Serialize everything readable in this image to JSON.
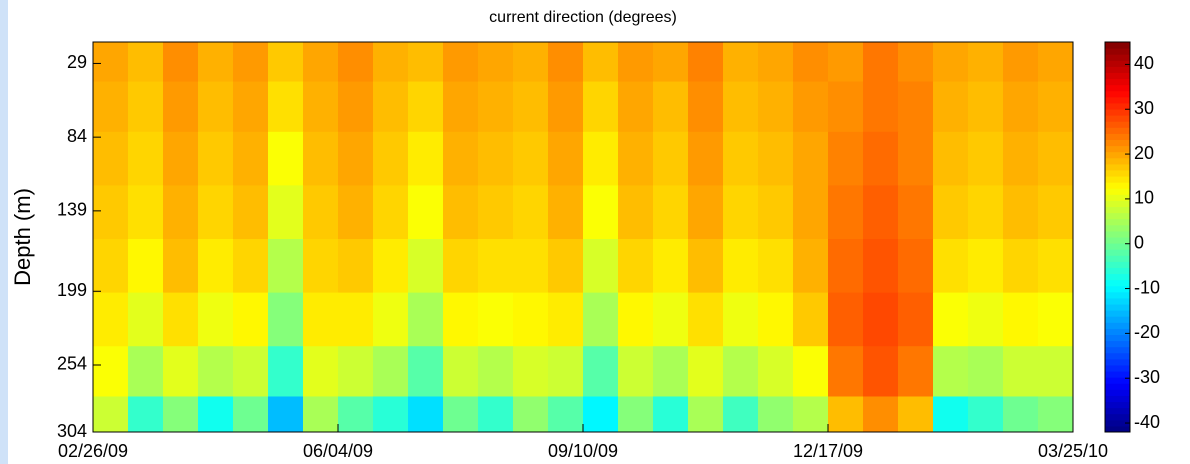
{
  "chart_data": {
    "type": "heatmap",
    "title": "current direction (degrees)",
    "y_label": "Depth (m)",
    "x": [
      "2009-02-26",
      "2009-03-12",
      "2009-03-26",
      "2009-04-09",
      "2009-04-23",
      "2009-05-07",
      "2009-05-21",
      "2009-06-04",
      "2009-06-18",
      "2009-07-02",
      "2009-07-16",
      "2009-07-30",
      "2009-08-13",
      "2009-08-27",
      "2009-09-10",
      "2009-09-24",
      "2009-10-08",
      "2009-10-22",
      "2009-11-05",
      "2009-11-19",
      "2009-12-03",
      "2009-12-17",
      "2009-12-31",
      "2010-01-14",
      "2010-01-28",
      "2010-02-11",
      "2010-02-25",
      "2010-03-11"
    ],
    "y": [
      25,
      60,
      100,
      140,
      180,
      220,
      260,
      295
    ],
    "z": [
      [
        20,
        18,
        22,
        19,
        21,
        17,
        20,
        22,
        19,
        18,
        21,
        20,
        19,
        22,
        18,
        21,
        20,
        23,
        19,
        20,
        22,
        21,
        24,
        22,
        20,
        19,
        21,
        20
      ],
      [
        19,
        17,
        21,
        18,
        20,
        15,
        19,
        21,
        18,
        16,
        20,
        19,
        18,
        21,
        16,
        20,
        18,
        22,
        18,
        19,
        21,
        22,
        24,
        23,
        19,
        18,
        20,
        19
      ],
      [
        18,
        16,
        20,
        17,
        19,
        12,
        18,
        20,
        17,
        14,
        19,
        18,
        17,
        20,
        14,
        19,
        17,
        21,
        17,
        18,
        20,
        23,
        25,
        23,
        18,
        17,
        19,
        18
      ],
      [
        17,
        15,
        19,
        16,
        18,
        10,
        17,
        19,
        16,
        12,
        18,
        17,
        16,
        19,
        12,
        18,
        16,
        20,
        16,
        17,
        20,
        24,
        26,
        24,
        17,
        16,
        18,
        17
      ],
      [
        16,
        13,
        18,
        14,
        16,
        6,
        16,
        17,
        14,
        9,
        16,
        15,
        15,
        17,
        9,
        16,
        14,
        18,
        14,
        15,
        19,
        25,
        27,
        25,
        15,
        14,
        16,
        15
      ],
      [
        14,
        10,
        15,
        11,
        13,
        2,
        14,
        14,
        11,
        5,
        13,
        12,
        13,
        14,
        5,
        13,
        11,
        15,
        11,
        13,
        17,
        26,
        28,
        26,
        12,
        11,
        13,
        12
      ],
      [
        12,
        5,
        10,
        6,
        8,
        -5,
        10,
        8,
        5,
        -2,
        8,
        6,
        9,
        8,
        -2,
        8,
        5,
        10,
        6,
        9,
        12,
        24,
        27,
        24,
        6,
        5,
        8,
        8
      ],
      [
        8,
        -5,
        2,
        -8,
        0,
        -15,
        5,
        -2,
        -6,
        -12,
        0,
        -5,
        3,
        -2,
        -10,
        2,
        -6,
        5,
        -4,
        3,
        6,
        18,
        22,
        18,
        -8,
        -5,
        0,
        2
      ]
    ],
    "xlim": [
      "2009-02-26",
      "2010-03-25"
    ],
    "xticks": [
      {
        "value": "2009-02-26",
        "label": "02/26/09"
      },
      {
        "value": "2009-06-04",
        "label": "06/04/09"
      },
      {
        "value": "2009-09-10",
        "label": "09/10/09"
      },
      {
        "value": "2009-12-17",
        "label": "12/17/09"
      },
      {
        "value": "2010-03-25",
        "label": "03/25/10"
      }
    ],
    "ylim": [
      13,
      304
    ],
    "y_inverted": true,
    "yticks": [
      29,
      84,
      139,
      199,
      254,
      304
    ],
    "colormap": "jet",
    "clim": [
      -42,
      45
    ],
    "cticks": [
      40,
      30,
      20,
      10,
      0,
      -10,
      -20,
      -30,
      -40
    ]
  }
}
